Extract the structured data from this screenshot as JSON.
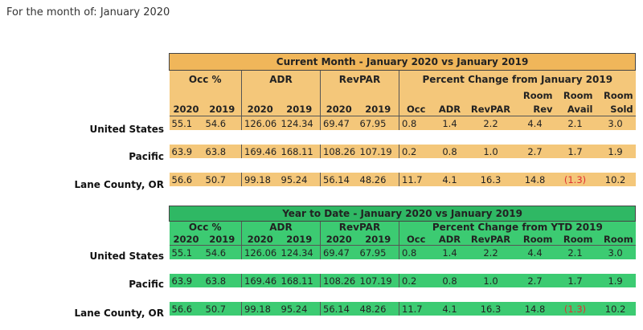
{
  "caption": "For the month of: January 2020",
  "row_labels": [
    "United States",
    "Pacific",
    "Lane County, OR"
  ],
  "current_month": {
    "title": "Current Month - January 2020 vs January 2019",
    "groups": {
      "occ": "Occ %",
      "adr": "ADR",
      "revpar": "RevPAR",
      "pct": "Percent Change from January 2019"
    },
    "sub_top": {
      "room_rev": "Room",
      "room_avail": "Room",
      "room_sold": "Room"
    },
    "years": [
      "2020",
      "2019"
    ],
    "pct_cols": [
      "Occ",
      "ADR",
      "RevPAR",
      "Rev",
      "Avail",
      "Sold"
    ],
    "rows": [
      {
        "occ2020": "55.1",
        "occ2019": "54.6",
        "adr2020": "126.06",
        "adr2019": "124.34",
        "rev2020": "69.47",
        "rev2019": "67.95",
        "p_occ": "0.8",
        "p_adr": "1.4",
        "p_revpar": "2.2",
        "p_rev": "4.4",
        "p_avail": "2.1",
        "p_sold": "3.0"
      },
      {
        "occ2020": "63.9",
        "occ2019": "63.8",
        "adr2020": "169.46",
        "adr2019": "168.11",
        "rev2020": "108.26",
        "rev2019": "107.19",
        "p_occ": "0.2",
        "p_adr": "0.8",
        "p_revpar": "1.0",
        "p_rev": "2.7",
        "p_avail": "1.7",
        "p_sold": "1.9"
      },
      {
        "occ2020": "56.6",
        "occ2019": "50.7",
        "adr2020": "99.18",
        "adr2019": "95.24",
        "rev2020": "56.14",
        "rev2019": "48.26",
        "p_occ": "11.7",
        "p_adr": "4.1",
        "p_revpar": "16.3",
        "p_rev": "14.8",
        "p_avail": "(1.3)",
        "p_sold": "10.2"
      }
    ]
  },
  "ytd": {
    "title": "Year to Date - January 2020 vs January 2019",
    "groups": {
      "occ": "Occ %",
      "adr": "ADR",
      "revpar": "RevPAR",
      "pct": "Percent Change from YTD 2019"
    },
    "years": [
      "2020",
      "2019"
    ],
    "pct_cols": [
      "Occ",
      "ADR",
      "RevPAR",
      "Room",
      "Room",
      "Room"
    ],
    "rows": [
      {
        "occ2020": "55.1",
        "occ2019": "54.6",
        "adr2020": "126.06",
        "adr2019": "124.34",
        "rev2020": "69.47",
        "rev2019": "67.95",
        "p_occ": "0.8",
        "p_adr": "1.4",
        "p_revpar": "2.2",
        "p_rev": "4.4",
        "p_avail": "2.1",
        "p_sold": "3.0"
      },
      {
        "occ2020": "63.9",
        "occ2019": "63.8",
        "adr2020": "169.46",
        "adr2019": "168.11",
        "rev2020": "108.26",
        "rev2019": "107.19",
        "p_occ": "0.2",
        "p_adr": "0.8",
        "p_revpar": "1.0",
        "p_rev": "2.7",
        "p_avail": "1.7",
        "p_sold": "1.9"
      },
      {
        "occ2020": "56.6",
        "occ2019": "50.7",
        "adr2020": "99.18",
        "adr2019": "95.24",
        "rev2020": "56.14",
        "rev2019": "48.26",
        "p_occ": "11.7",
        "p_adr": "4.1",
        "p_revpar": "16.3",
        "p_rev": "14.8",
        "p_avail": "(1.3)",
        "p_sold": "10.2"
      }
    ]
  },
  "colors": {
    "current_month_fill": "#f4c77a",
    "ytd_fill": "#3ccb72",
    "negative": "#e03030"
  }
}
